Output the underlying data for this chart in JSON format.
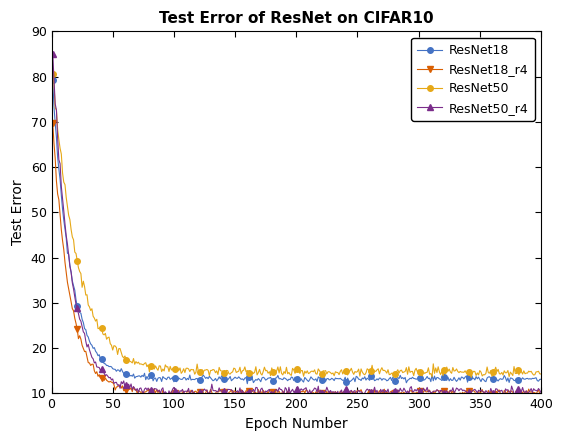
{
  "title": "Test Error of ResNet on CIFAR10",
  "xlabel": "Epoch Number",
  "ylabel": "Test Error",
  "xlim": [
    0,
    400
  ],
  "ylim": [
    10,
    90
  ],
  "yticks": [
    10,
    20,
    30,
    40,
    50,
    60,
    70,
    80,
    90
  ],
  "xticks": [
    0,
    50,
    100,
    150,
    200,
    250,
    300,
    350,
    400
  ],
  "series": [
    {
      "label": "ResNet18",
      "color": "#4472C4",
      "marker": "o",
      "final_val": 13.2,
      "start_val": 83.0,
      "decay_rate": 0.068,
      "noise_scale": 0.35,
      "seed": 10
    },
    {
      "label": "ResNet18_r4",
      "color": "#D95F02",
      "marker": "v",
      "final_val": 10.2,
      "start_val": 74.0,
      "decay_rate": 0.072,
      "noise_scale": 0.35,
      "seed": 20
    },
    {
      "label": "ResNet50",
      "color": "#E6A817",
      "marker": "o",
      "final_val": 14.8,
      "start_val": 85.0,
      "decay_rate": 0.05,
      "noise_scale": 0.5,
      "seed": 30
    },
    {
      "label": "ResNet50_r4",
      "color": "#7B2D8B",
      "marker": "^",
      "final_val": 10.5,
      "start_val": 90.0,
      "decay_rate": 0.07,
      "noise_scale": 0.45,
      "seed": 40
    }
  ],
  "n_epochs": 400,
  "marker_every": 20,
  "marker_size": 4,
  "linewidth": 0.8,
  "title_fontsize": 11,
  "label_fontsize": 10,
  "tick_fontsize": 9,
  "legend_fontsize": 9
}
